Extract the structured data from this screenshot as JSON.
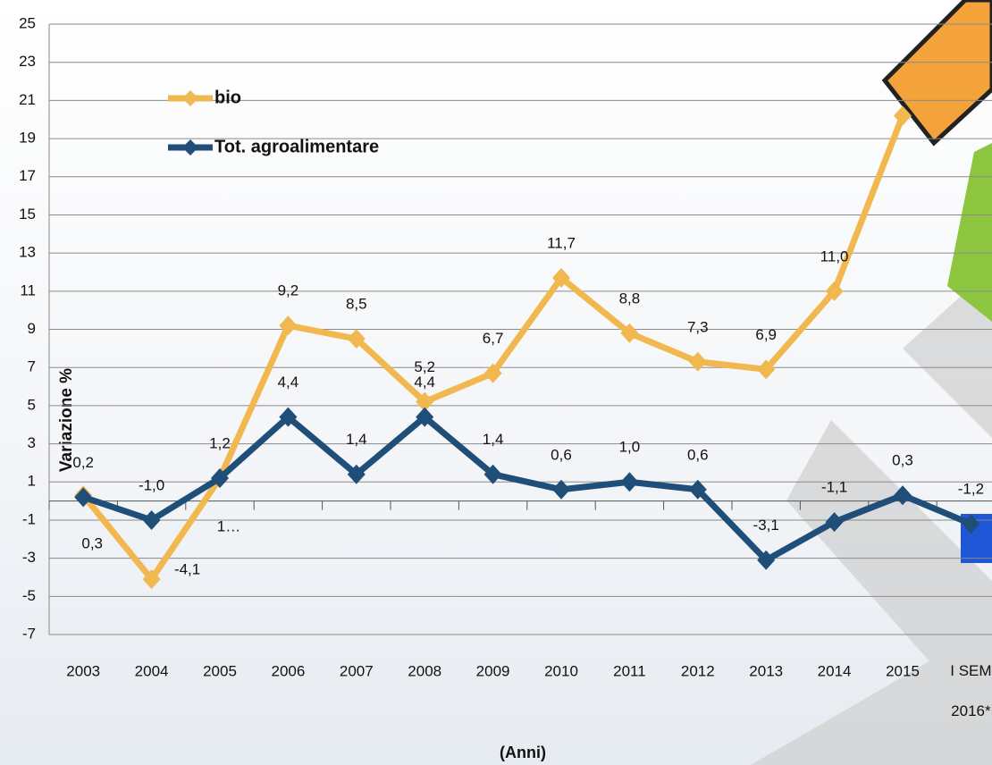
{
  "chart_data": {
    "type": "line",
    "y_axis_label": "Variazione %",
    "x_axis_label": "(Anni)",
    "categories": [
      "2003",
      "2004",
      "2005",
      "2006",
      "2007",
      "2008",
      "2009",
      "2010",
      "2011",
      "2012",
      "2013",
      "2014",
      "2015",
      "I SEM 2016*"
    ],
    "series": [
      {
        "name": "bio",
        "color": "#f0b84f",
        "values": [
          0.3,
          -4.1,
          1.2,
          9.2,
          8.5,
          5.2,
          6.7,
          11.7,
          8.8,
          7.3,
          6.9,
          11.0,
          20.2,
          null
        ],
        "value_labels": [
          "0,3",
          "-4,1",
          "1…",
          "9,2",
          "8,5",
          "5,2",
          "6,7",
          "11,7",
          "8,8",
          "7,3",
          "6,9",
          "11,0",
          null,
          null
        ]
      },
      {
        "name": "Tot. agroalimentare",
        "color": "#1f4e79",
        "values": [
          0.2,
          -1.0,
          1.2,
          4.4,
          1.4,
          4.4,
          1.4,
          0.6,
          1.0,
          0.6,
          -3.1,
          -1.1,
          0.3,
          -1.2
        ],
        "value_labels": [
          "0,2",
          "-1,0",
          "1,2",
          "4,4",
          "1,4",
          "4,4",
          "1,4",
          "0,6",
          "1,0",
          "0,6",
          "-3,1",
          "-1,1",
          "0,3",
          "-1,2"
        ]
      }
    ],
    "ylim": [
      -7,
      25
    ],
    "yticks": [
      -7,
      -5,
      -3,
      -1,
      1,
      3,
      5,
      7,
      9,
      11,
      13,
      15,
      17,
      19,
      21,
      23,
      25
    ],
    "grid": true,
    "legend": "top-left"
  }
}
